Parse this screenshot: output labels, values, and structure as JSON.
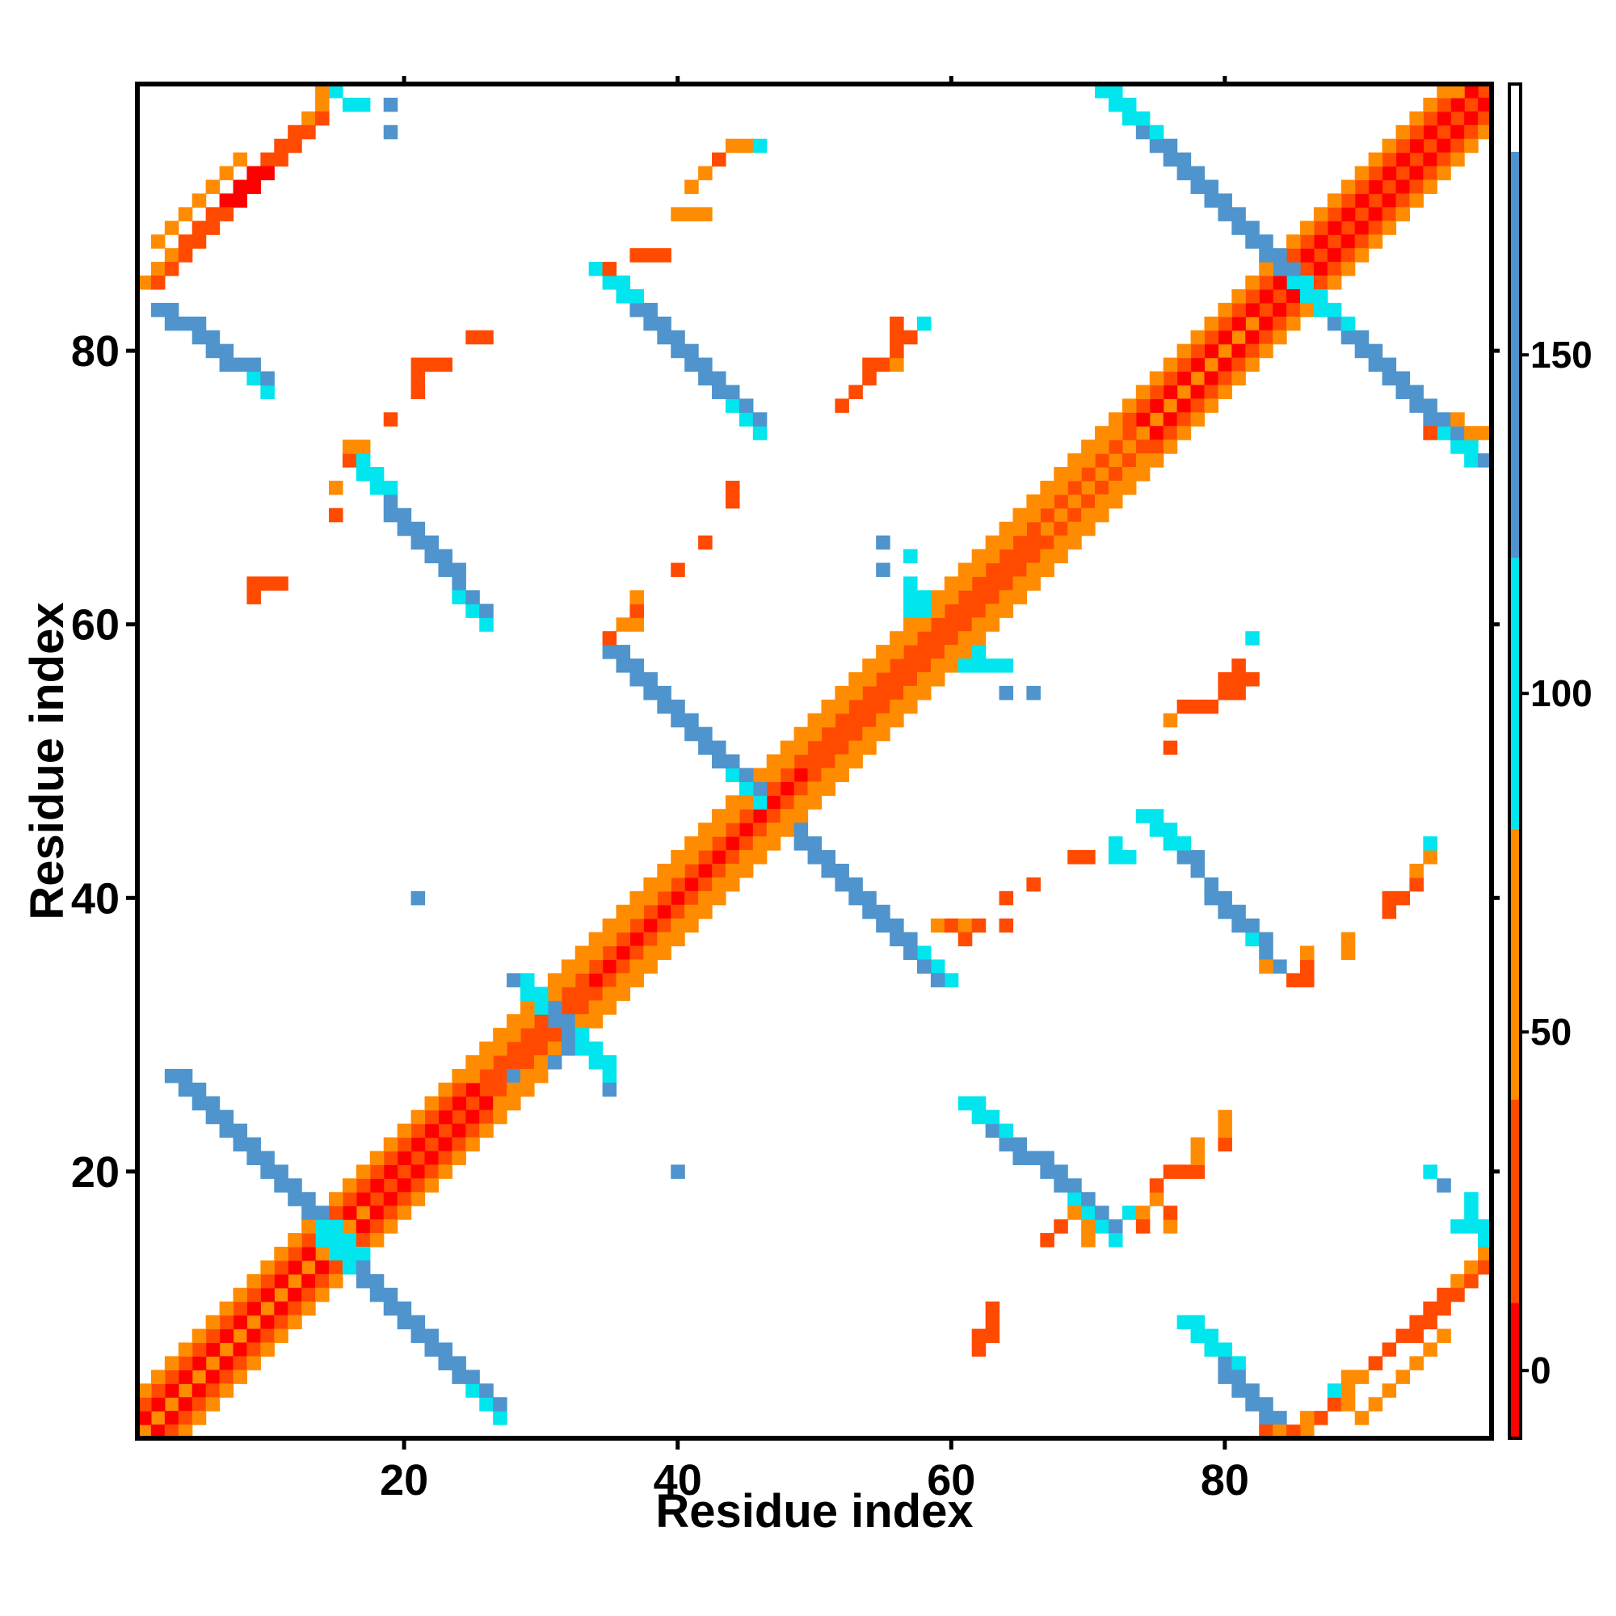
{
  "chart_data": {
    "type": "heatmap",
    "title": "",
    "xlabel": "Residue index",
    "ylabel": "Residue index",
    "xlim": [
      0.5,
      99.5
    ],
    "ylim": [
      0.5,
      99.5
    ],
    "x_ticks": [
      20,
      40,
      60,
      80
    ],
    "y_ticks": [
      20,
      40,
      60,
      80
    ],
    "x_tick_labels": [
      "20",
      "40",
      "60",
      "80"
    ],
    "y_tick_labels": [
      "20",
      "40",
      "60",
      "80"
    ],
    "colorbar": {
      "range": [
        -10,
        190
      ],
      "ticks": [
        0,
        50,
        100,
        150
      ],
      "tick_labels": [
        "0",
        "50",
        "100",
        "150"
      ],
      "bands": [
        {
          "from": -10,
          "to": 10,
          "color": "#ff0000"
        },
        {
          "from": 10,
          "to": 40,
          "color": "#ff4a00"
        },
        {
          "from": 40,
          "to": 80,
          "color": "#ff8c00"
        },
        {
          "from": 80,
          "to": 120,
          "color": "#00e5ee"
        },
        {
          "from": 120,
          "to": 180,
          "color": "#4f94cd"
        },
        {
          "from": 180,
          "to": 190,
          "color": "#ffffff"
        }
      ]
    },
    "palette": {
      "red": "#ff0000",
      "red_orange": "#ff4500",
      "orange": "#ff8c00",
      "cyan": "#00e5ee",
      "steel_blue": "#4f94cd"
    },
    "segments": [
      {
        "x0": 1,
        "y0": 1,
        "x1": 99,
        "y1": 99,
        "values": [
          40,
          20,
          5,
          25,
          45,
          15
        ]
      },
      {
        "x0": 2,
        "y0": 1,
        "x1": 99,
        "y1": 98,
        "values": [
          0,
          10,
          30,
          5
        ]
      },
      {
        "x0": 1,
        "y0": 2,
        "x1": 98,
        "y1": 99,
        "values": [
          0,
          10,
          30,
          5
        ]
      },
      {
        "x0": 3,
        "y0": 1,
        "x1": 99,
        "y1": 97,
        "values": [
          20,
          40,
          60,
          30
        ]
      },
      {
        "x0": 1,
        "y0": 3,
        "x1": 97,
        "y1": 99,
        "values": [
          20,
          40,
          60,
          30
        ]
      },
      {
        "x0": 4,
        "y0": 1,
        "x1": 99,
        "y1": 96,
        "values": [
          50,
          65,
          45
        ]
      },
      {
        "x0": 1,
        "y0": 4,
        "x1": 96,
        "y1": 99,
        "values": [
          50,
          65,
          45
        ]
      },
      {
        "x0": 14,
        "y0": 15,
        "x1": 27,
        "y1": 2,
        "values": [
          95,
          140,
          150,
          140,
          110
        ]
      },
      {
        "x0": 14,
        "y0": 16,
        "x1": 27,
        "y1": 3,
        "values": [
          100,
          140,
          150,
          140,
          120
        ]
      },
      {
        "x0": 3,
        "y0": 27,
        "x1": 16,
        "y1": 14,
        "values": [
          120,
          150,
          150,
          140,
          100
        ]
      },
      {
        "x0": 4,
        "y0": 27,
        "x1": 17,
        "y1": 14,
        "values": [
          120,
          150,
          150,
          140,
          100
        ]
      },
      {
        "x0": 28,
        "y0": 34,
        "x1": 35,
        "y1": 27,
        "values": [
          100,
          140,
          110
        ]
      },
      {
        "x0": 29,
        "y0": 34,
        "x1": 35,
        "y1": 28,
        "values": [
          100,
          120,
          110
        ]
      },
      {
        "x0": 35,
        "y0": 58,
        "x1": 46,
        "y1": 47,
        "values": [
          130,
          150,
          150,
          140,
          110
        ]
      },
      {
        "x0": 36,
        "y0": 58,
        "x1": 46,
        "y1": 48,
        "values": [
          130,
          150,
          150,
          140
        ]
      },
      {
        "x0": 49,
        "y0": 45,
        "x1": 60,
        "y1": 34,
        "values": [
          140,
          150,
          150,
          140,
          110
        ]
      },
      {
        "x0": 49,
        "y0": 44,
        "x1": 59,
        "y1": 34,
        "values": [
          140,
          150,
          150,
          130
        ]
      },
      {
        "x0": 16,
        "y0": 72,
        "x1": 26,
        "y1": 60,
        "values": [
          110,
          150,
          150,
          140,
          110
        ]
      },
      {
        "x0": 17,
        "y0": 72,
        "x1": 26,
        "y1": 61,
        "values": [
          110,
          150,
          150,
          130
        ]
      },
      {
        "x0": 34,
        "y0": 86,
        "x1": 46,
        "y1": 74,
        "values": [
          110,
          150,
          150,
          140,
          100
        ]
      },
      {
        "x0": 35,
        "y0": 86,
        "x1": 46,
        "y1": 75,
        "values": [
          110,
          150,
          150,
          130
        ]
      },
      {
        "x0": 74,
        "y0": 46,
        "x1": 84,
        "y1": 35,
        "values": [
          110,
          150,
          150,
          140,
          110
        ]
      },
      {
        "x0": 75,
        "y0": 46,
        "x1": 85,
        "y1": 34,
        "values": [
          110,
          150,
          150,
          130
        ]
      },
      {
        "x0": 61,
        "y0": 25,
        "x1": 71,
        "y1": 16,
        "values": [
          110,
          150,
          150,
          140,
          110
        ]
      },
      {
        "x0": 62,
        "y0": 25,
        "x1": 72,
        "y1": 16,
        "values": [
          110,
          150,
          150,
          130
        ]
      },
      {
        "x0": 71,
        "y0": 99,
        "x1": 84,
        "y1": 86,
        "values": [
          100,
          140,
          150,
          150,
          140
        ]
      },
      {
        "x0": 72,
        "y0": 99,
        "x1": 85,
        "y1": 86,
        "values": [
          110,
          150,
          150,
          140
        ]
      },
      {
        "x0": 85,
        "y0": 85,
        "x1": 98,
        "y1": 72,
        "values": [
          110,
          150,
          150,
          140,
          100
        ]
      },
      {
        "x0": 86,
        "y0": 85,
        "x1": 99,
        "y1": 72,
        "values": [
          110,
          150,
          150,
          140
        ]
      },
      {
        "x0": 2,
        "y0": 83,
        "x1": 10,
        "y1": 77,
        "values": [
          140,
          120,
          110
        ]
      },
      {
        "x0": 3,
        "y0": 83,
        "x1": 10,
        "y1": 78,
        "values": [
          140,
          120
        ]
      },
      {
        "x0": 77,
        "y0": 9,
        "x1": 83,
        "y1": 2,
        "values": [
          110,
          120,
          140
        ]
      },
      {
        "x0": 78,
        "y0": 9,
        "x1": 84,
        "y1": 2,
        "values": [
          110,
          140
        ]
      },
      {
        "x0": 1,
        "y0": 85,
        "x1": 15,
        "y1": 99,
        "values": [
          40,
          20,
          5,
          20,
          45
        ]
      },
      {
        "x0": 2,
        "y0": 85,
        "x1": 14,
        "y1": 97,
        "values": [
          30,
          10,
          5,
          30
        ]
      },
      {
        "x0": 2,
        "y0": 88,
        "x1": 8,
        "y1": 94,
        "values": [
          50,
          40
        ]
      },
      {
        "x0": 86,
        "y0": 1,
        "x1": 99,
        "y1": 14,
        "values": [
          45,
          20,
          5,
          20,
          40
        ]
      },
      {
        "x0": 87,
        "y0": 2,
        "x1": 99,
        "y1": 13,
        "values": [
          30,
          10,
          10,
          30
        ]
      },
      {
        "x0": 90,
        "y0": 2,
        "x1": 96,
        "y1": 8,
        "values": [
          50,
          40
        ]
      }
    ],
    "cells": [
      [
        95,
        74,
        30
      ],
      [
        97,
        75,
        40
      ],
      [
        98,
        74,
        60
      ],
      [
        99,
        74,
        45
      ],
      [
        98,
        73,
        100
      ],
      [
        96,
        99,
        40
      ],
      [
        97,
        99,
        45
      ],
      [
        97,
        16,
        110
      ],
      [
        98,
        16,
        100
      ],
      [
        99,
        15,
        110
      ],
      [
        98,
        18,
        100
      ],
      [
        96,
        19,
        120
      ],
      [
        95,
        20,
        100
      ],
      [
        98,
        17,
        110
      ],
      [
        99,
        16,
        110
      ],
      [
        14,
        99,
        45
      ],
      [
        15,
        99,
        100
      ],
      [
        16,
        98,
        100
      ],
      [
        17,
        98,
        110
      ],
      [
        19,
        98,
        120
      ],
      [
        19,
        96,
        120
      ],
      [
        31,
        28,
        140
      ],
      [
        32,
        29,
        120
      ],
      [
        28,
        34,
        145
      ],
      [
        35,
        26,
        140
      ],
      [
        40,
        20,
        120
      ],
      [
        21,
        40,
        120
      ],
      [
        9,
        62,
        30
      ],
      [
        10,
        63,
        30
      ],
      [
        11,
        63,
        30
      ],
      [
        9,
        63,
        30
      ],
      [
        19,
        75,
        25
      ],
      [
        21,
        77,
        30
      ],
      [
        21,
        78,
        30
      ],
      [
        22,
        79,
        30
      ],
      [
        21,
        79,
        25
      ],
      [
        23,
        79,
        20
      ],
      [
        25,
        81,
        30
      ],
      [
        26,
        81,
        30
      ],
      [
        16,
        73,
        50
      ],
      [
        17,
        73,
        40
      ],
      [
        16,
        72,
        30
      ],
      [
        15,
        70,
        40
      ],
      [
        15,
        68,
        20
      ],
      [
        44,
        70,
        20
      ],
      [
        44,
        69,
        25
      ],
      [
        42,
        66,
        25
      ],
      [
        40,
        64,
        20
      ],
      [
        44,
        95,
        40
      ],
      [
        45,
        95,
        45
      ],
      [
        46,
        95,
        110
      ],
      [
        43,
        94,
        30
      ],
      [
        42,
        93,
        45
      ],
      [
        41,
        92,
        45
      ],
      [
        40,
        90,
        50
      ],
      [
        41,
        90,
        50
      ],
      [
        42,
        90,
        50
      ],
      [
        37,
        87,
        30
      ],
      [
        38,
        87,
        30
      ],
      [
        39,
        87,
        30
      ],
      [
        35,
        86,
        25
      ],
      [
        52,
        76,
        25
      ],
      [
        53,
        77,
        30
      ],
      [
        54,
        78,
        30
      ],
      [
        54,
        79,
        30
      ],
      [
        55,
        79,
        35
      ],
      [
        56,
        79,
        40
      ],
      [
        56,
        80,
        35
      ],
      [
        56,
        81,
        30
      ],
      [
        56,
        82,
        30
      ],
      [
        57,
        81,
        30
      ],
      [
        58,
        82,
        110
      ],
      [
        55,
        66,
        120
      ],
      [
        55,
        64,
        120
      ],
      [
        57,
        65,
        110
      ],
      [
        57,
        63,
        110
      ],
      [
        57,
        62,
        100
      ],
      [
        57,
        61,
        100
      ],
      [
        58,
        61,
        110
      ],
      [
        58,
        62,
        110
      ],
      [
        61,
        57,
        100
      ],
      [
        62,
        57,
        110
      ],
      [
        63,
        57,
        110
      ],
      [
        64,
        57,
        110
      ],
      [
        62,
        58,
        100
      ],
      [
        64,
        55,
        120
      ],
      [
        66,
        55,
        120
      ],
      [
        36,
        60,
        60
      ],
      [
        37,
        60,
        40
      ],
      [
        37,
        61,
        30
      ],
      [
        37,
        62,
        40
      ],
      [
        35,
        59,
        20
      ],
      [
        59,
        38,
        40
      ],
      [
        60,
        38,
        35
      ],
      [
        61,
        38,
        45
      ],
      [
        62,
        38,
        35
      ],
      [
        61,
        37,
        30
      ],
      [
        64,
        38,
        35
      ],
      [
        64,
        40,
        30
      ],
      [
        66,
        41,
        25
      ],
      [
        69,
        43,
        20
      ],
      [
        70,
        43,
        30
      ],
      [
        72,
        43,
        100
      ],
      [
        73,
        43,
        110
      ],
      [
        72,
        44,
        100
      ],
      [
        79,
        54,
        30
      ],
      [
        80,
        55,
        30
      ],
      [
        81,
        55,
        35
      ],
      [
        80,
        56,
        30
      ],
      [
        81,
        56,
        35
      ],
      [
        82,
        56,
        30
      ],
      [
        76,
        53,
        40
      ],
      [
        77,
        54,
        30
      ],
      [
        78,
        54,
        30
      ],
      [
        76,
        51,
        35
      ],
      [
        82,
        59,
        110
      ],
      [
        81,
        57,
        25
      ],
      [
        85,
        34,
        30
      ],
      [
        83,
        35,
        40
      ],
      [
        86,
        34,
        30
      ],
      [
        86,
        35,
        35
      ],
      [
        86,
        36,
        40
      ],
      [
        89,
        36,
        40
      ],
      [
        89,
        37,
        50
      ],
      [
        92,
        39,
        30
      ],
      [
        92,
        40,
        35
      ],
      [
        93,
        40,
        30
      ],
      [
        94,
        41,
        35
      ],
      [
        94,
        42,
        40
      ],
      [
        95,
        43,
        45
      ],
      [
        95,
        44,
        110
      ],
      [
        62,
        7,
        30
      ],
      [
        62,
        8,
        30
      ],
      [
        63,
        8,
        35
      ],
      [
        63,
        9,
        30
      ],
      [
        63,
        10,
        30
      ],
      [
        67,
        15,
        20
      ],
      [
        68,
        16,
        30
      ],
      [
        69,
        17,
        40
      ],
      [
        70,
        15,
        45
      ],
      [
        70,
        16,
        40
      ],
      [
        72,
        15,
        110
      ],
      [
        72,
        16,
        120
      ],
      [
        73,
        17,
        110
      ],
      [
        74,
        17,
        40
      ],
      [
        74,
        16,
        30
      ],
      [
        75,
        18,
        45
      ],
      [
        76,
        16,
        40
      ],
      [
        76,
        17,
        30
      ],
      [
        75,
        19,
        30
      ],
      [
        76,
        20,
        30
      ],
      [
        77,
        20,
        25
      ],
      [
        78,
        20,
        30
      ],
      [
        78,
        21,
        40
      ],
      [
        78,
        22,
        40
      ],
      [
        80,
        22,
        30
      ],
      [
        80,
        23,
        45
      ],
      [
        80,
        24,
        50
      ],
      [
        83,
        1,
        30
      ],
      [
        84,
        1,
        40
      ],
      [
        85,
        1,
        30
      ],
      [
        86,
        2,
        40
      ],
      [
        88,
        4,
        110
      ],
      [
        89,
        4,
        60
      ],
      [
        89,
        5,
        50
      ],
      [
        89,
        3,
        40
      ],
      [
        90,
        5,
        45
      ],
      [
        28,
        27,
        120
      ]
    ]
  }
}
